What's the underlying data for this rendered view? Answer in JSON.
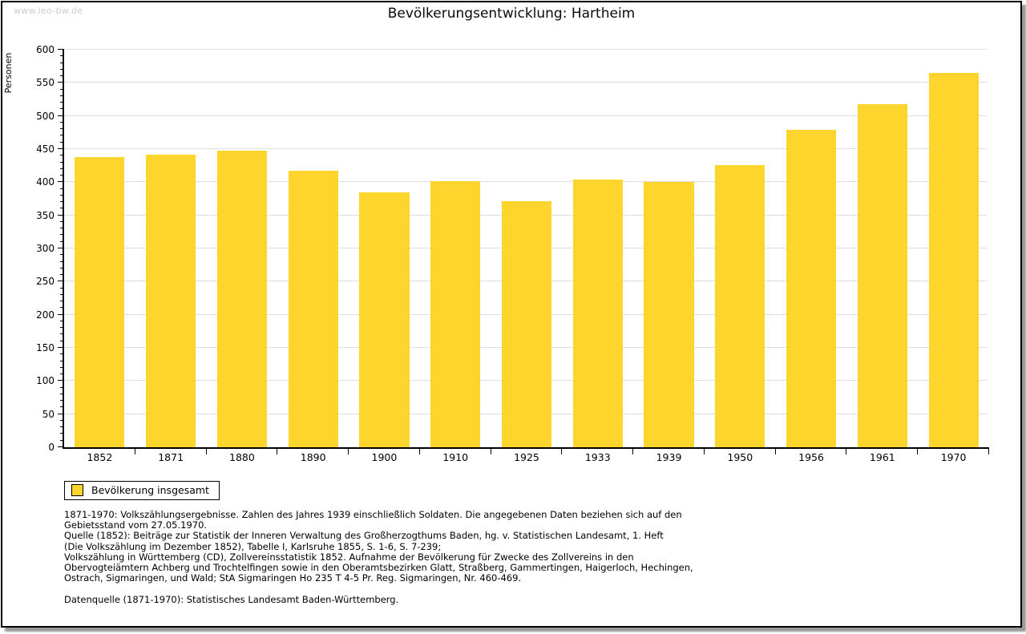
{
  "watermark": "www.leo-bw.de",
  "title": "Bevölkerungsentwicklung: Hartheim",
  "legend": {
    "label": "Bevölkerung insgesamt"
  },
  "colors": {
    "bar": "#FDD52D",
    "grid": "#DDDDDD",
    "axis": "#000000",
    "watermark": "#CCCCCC"
  },
  "chart_data": {
    "type": "bar",
    "title": "Bevölkerungsentwicklung: Hartheim",
    "xlabel": "",
    "ylabel": "Personen",
    "categories": [
      "1852",
      "1871",
      "1880",
      "1890",
      "1900",
      "1910",
      "1925",
      "1933",
      "1939",
      "1950",
      "1956",
      "1961",
      "1970"
    ],
    "values": [
      438,
      441,
      447,
      417,
      385,
      402,
      371,
      404,
      400,
      426,
      479,
      518,
      565
    ],
    "ylim": [
      0,
      600
    ],
    "ytick_step": 50,
    "minor_tick_step": 10,
    "grid": true,
    "legend_entries": [
      "Bevölkerung insgesamt"
    ],
    "legend_position": "bottom-left",
    "bar_color": "#FDD52D"
  },
  "footnotes": {
    "lines": [
      "1871-1970: Volkszählungsergebnisse. Zahlen des Jahres 1939 einschließlich Soldaten. Die angegebenen Daten beziehen sich auf den",
      "Gebietsstand vom 27.05.1970.",
      "Quelle (1852): Beiträge zur Statistik der Inneren Verwaltung des Großherzogthums Baden, hg. v. Statistischen Landesamt, 1. Heft",
      "(Die Volkszählung im Dezember 1852), Tabelle I, Karlsruhe 1855, S. 1-6, S. 7-239;",
      "Volkszählung in Württemberg (CD), Zollvereinsstatistik 1852. Aufnahme der Bevölkerung für Zwecke des Zollvereins in den",
      "Obervogteiämtern Achberg und Trochtelfingen sowie in den Oberamtsbezirken Glatt, Straßberg, Gammertingen, Haigerloch, Hechingen,",
      "Ostrach, Sigmaringen, und Wald; StA Sigmaringen Ho 235 T 4-5 Pr. Reg. Sigmaringen, Nr. 460-469."
    ],
    "datasource": "Datenquelle (1871-1970): Statistisches Landesamt Baden-Württemberg."
  }
}
